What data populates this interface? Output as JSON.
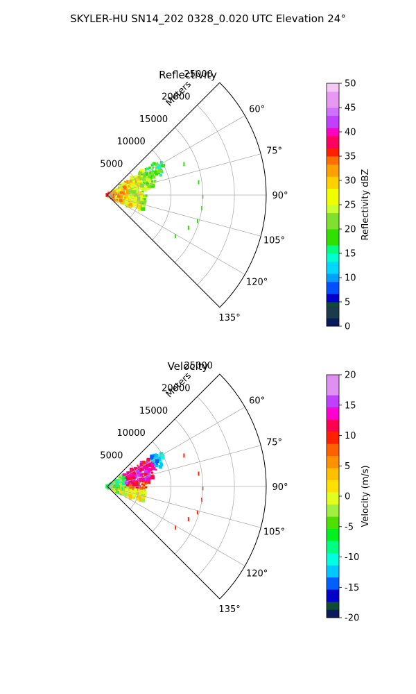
{
  "figure": {
    "suptitle": "SKYLER-HU  SN14_202  0328_0.020 UTC Elevation 24°"
  },
  "chart_data": [
    {
      "type": "heatmap",
      "title": "Reflectivity",
      "range_label": "Meters",
      "r_ticks": [
        5000,
        10000,
        15000,
        20000,
        25000
      ],
      "r_tick_labels": [
        "5000",
        "10000",
        "15000",
        "20000",
        "25000"
      ],
      "rlim": [
        0,
        25000
      ],
      "theta_ticks": [
        60,
        75,
        90,
        105,
        120,
        135
      ],
      "theta_tick_labels": [
        "60°",
        "75°",
        "90°",
        "105°",
        "120°",
        "135°"
      ],
      "theta_range": [
        45,
        135
      ],
      "grid": true,
      "colorbar": {
        "label": "Reflectivity dBZ",
        "vmin": 0,
        "vmax": 50,
        "ticks": [
          0,
          5,
          10,
          15,
          20,
          25,
          30,
          35,
          40,
          45,
          50
        ],
        "tick_labels": [
          "0",
          "5",
          "10",
          "15",
          "20",
          "25",
          "30",
          "35",
          "40",
          "45",
          "50"
        ]
      }
    },
    {
      "type": "heatmap",
      "title": "Velocity",
      "range_label": "Meters",
      "r_ticks": [
        5000,
        10000,
        15000,
        20000,
        25000
      ],
      "r_tick_labels": [
        "5000",
        "10000",
        "15000",
        "20000",
        "25000"
      ],
      "rlim": [
        0,
        25000
      ],
      "theta_ticks": [
        60,
        75,
        90,
        105,
        120,
        135
      ],
      "theta_tick_labels": [
        "60°",
        "75°",
        "90°",
        "105°",
        "120°",
        "135°"
      ],
      "theta_range": [
        45,
        135
      ],
      "grid": true,
      "colorbar": {
        "label": "Velocity (m/s)",
        "vmin": -20,
        "vmax": 20,
        "ticks": [
          -20,
          -15,
          -10,
          -5,
          0,
          5,
          10,
          15,
          20
        ],
        "tick_labels": [
          "-20",
          "-15",
          "-10",
          "-5",
          "0",
          "5",
          "10",
          "15",
          "20"
        ]
      }
    }
  ]
}
